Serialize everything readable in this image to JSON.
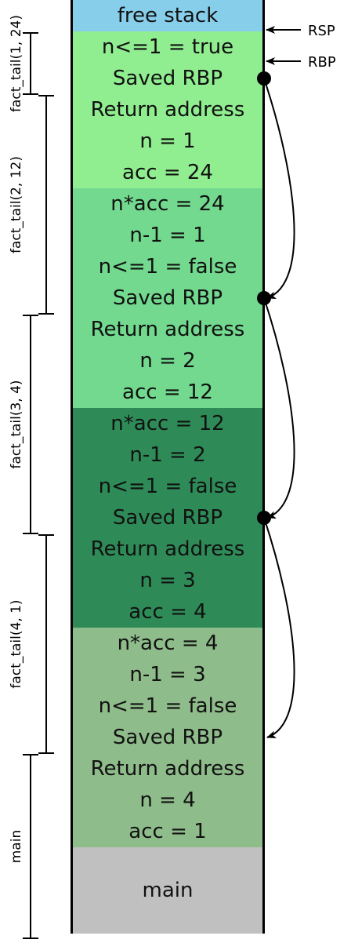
{
  "colors": {
    "free": "#87ceeb",
    "frame1": "#90ee90",
    "frame2": "#72d98f",
    "frame3": "#2e8b57",
    "frame4": "#8fbc8b",
    "main": "#c0c0c0"
  },
  "cells": [
    {
      "text": "free stack",
      "color": "free"
    },
    {
      "text": "n<=1 = true",
      "color": "frame1"
    },
    {
      "text": "Saved RBP",
      "color": "frame1"
    },
    {
      "text": "Return address",
      "color": "frame1"
    },
    {
      "text": "n = 1",
      "color": "frame1"
    },
    {
      "text": "acc = 24",
      "color": "frame1"
    },
    {
      "text": "n*acc = 24",
      "color": "frame2"
    },
    {
      "text": "n-1 = 1",
      "color": "frame2"
    },
    {
      "text": "n<=1 = false",
      "color": "frame2"
    },
    {
      "text": "Saved RBP",
      "color": "frame2"
    },
    {
      "text": "Return address",
      "color": "frame2"
    },
    {
      "text": "n = 2",
      "color": "frame2"
    },
    {
      "text": "acc = 12",
      "color": "frame2"
    },
    {
      "text": "n*acc = 12",
      "color": "frame3"
    },
    {
      "text": "n-1 = 2",
      "color": "frame3"
    },
    {
      "text": "n<=1 = false",
      "color": "frame3"
    },
    {
      "text": "Saved RBP",
      "color": "frame3"
    },
    {
      "text": "Return address",
      "color": "frame3"
    },
    {
      "text": "n = 3",
      "color": "frame3"
    },
    {
      "text": "acc = 4",
      "color": "frame3"
    },
    {
      "text": "n*acc = 4",
      "color": "frame4"
    },
    {
      "text": "n-1 = 3",
      "color": "frame4"
    },
    {
      "text": "n<=1 = false",
      "color": "frame4"
    },
    {
      "text": "Saved RBP",
      "color": "frame4"
    },
    {
      "text": "Return address",
      "color": "frame4"
    },
    {
      "text": "n = 4",
      "color": "frame4"
    },
    {
      "text": "acc = 1",
      "color": "frame4"
    },
    {
      "text": "main",
      "color": "main"
    }
  ],
  "frames": [
    {
      "label": "fact_tail(1, 24)",
      "from_cell": 1,
      "to_cell": 2
    },
    {
      "label": "fact_tail(2, 12)",
      "from_cell": 3,
      "to_cell": 9
    },
    {
      "label": "fact_tail(3, 4)",
      "from_cell": 10,
      "to_cell": 16
    },
    {
      "label": "fact_tail(4, 1)",
      "from_cell": 17,
      "to_cell": 23
    },
    {
      "label": "main",
      "from_cell": 24,
      "to_cell": 27
    }
  ],
  "pointers": [
    {
      "label": "RSP",
      "cell": 1
    },
    {
      "label": "RBP",
      "cell": 2
    }
  ],
  "rbp_links": [
    {
      "from_cell": 2,
      "to_cell": 9
    },
    {
      "from_cell": 9,
      "to_cell": 16
    },
    {
      "from_cell": 16,
      "to_cell": 23
    }
  ]
}
